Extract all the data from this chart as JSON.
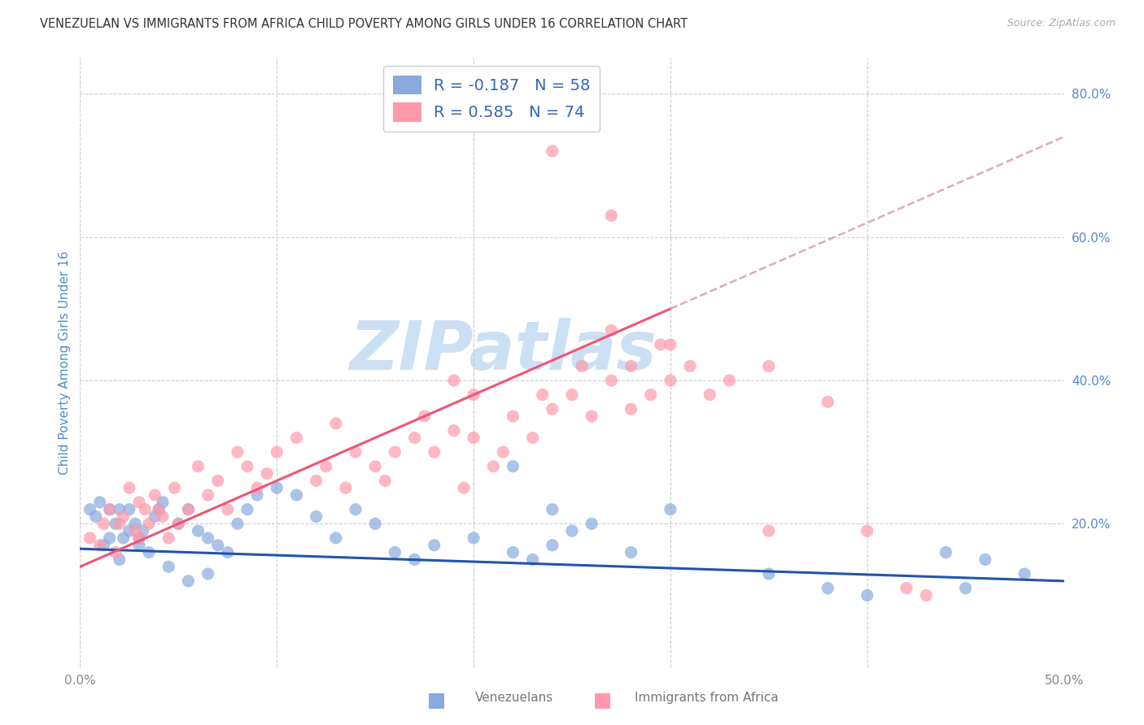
{
  "title": "VENEZUELAN VS IMMIGRANTS FROM AFRICA CHILD POVERTY AMONG GIRLS UNDER 16 CORRELATION CHART",
  "source": "Source: ZipAtlas.com",
  "ylabel": "Child Poverty Among Girls Under 16",
  "xlim": [
    0.0,
    0.5
  ],
  "ylim": [
    0.0,
    0.85
  ],
  "xtick_positions": [
    0.0,
    0.1,
    0.2,
    0.3,
    0.4,
    0.5
  ],
  "xtick_labels": [
    "0.0%",
    "",
    "",
    "",
    "",
    "50.0%"
  ],
  "ytick_labels_right": [
    "20.0%",
    "40.0%",
    "60.0%",
    "80.0%"
  ],
  "ytick_positions_right": [
    0.2,
    0.4,
    0.6,
    0.8
  ],
  "venezuelan_R": -0.187,
  "venezuelan_N": 58,
  "africa_R": 0.585,
  "africa_N": 74,
  "color_venezuelan": "#88AADD",
  "color_africa": "#FF99AA",
  "color_line_venezuelan": "#2255AA",
  "color_line_africa": "#EE5577",
  "color_line_africa_dash": "#DDAABB",
  "watermark_text": "ZIPatlas",
  "watermark_color": "#AACCEE",
  "africa_line_solid_end": 0.3,
  "africa_line_dash_start": 0.3,
  "venezuelan_x": [
    0.005,
    0.008,
    0.01,
    0.012,
    0.015,
    0.015,
    0.018,
    0.02,
    0.02,
    0.022,
    0.025,
    0.025,
    0.028,
    0.03,
    0.03,
    0.032,
    0.035,
    0.038,
    0.04,
    0.042,
    0.045,
    0.05,
    0.055,
    0.055,
    0.06,
    0.065,
    0.065,
    0.07,
    0.075,
    0.08,
    0.085,
    0.09,
    0.1,
    0.11,
    0.12,
    0.13,
    0.14,
    0.15,
    0.16,
    0.17,
    0.18,
    0.2,
    0.22,
    0.22,
    0.23,
    0.24,
    0.24,
    0.25,
    0.26,
    0.28,
    0.3,
    0.35,
    0.38,
    0.4,
    0.44,
    0.45,
    0.46,
    0.48
  ],
  "venezuelan_y": [
    0.22,
    0.21,
    0.23,
    0.17,
    0.22,
    0.18,
    0.2,
    0.22,
    0.15,
    0.18,
    0.22,
    0.19,
    0.2,
    0.18,
    0.17,
    0.19,
    0.16,
    0.21,
    0.22,
    0.23,
    0.14,
    0.2,
    0.22,
    0.12,
    0.19,
    0.18,
    0.13,
    0.17,
    0.16,
    0.2,
    0.22,
    0.24,
    0.25,
    0.24,
    0.21,
    0.18,
    0.22,
    0.2,
    0.16,
    0.15,
    0.17,
    0.18,
    0.28,
    0.16,
    0.15,
    0.22,
    0.17,
    0.19,
    0.2,
    0.16,
    0.22,
    0.13,
    0.11,
    0.1,
    0.16,
    0.11,
    0.15,
    0.13
  ],
  "africa_x": [
    0.005,
    0.01,
    0.012,
    0.015,
    0.018,
    0.02,
    0.022,
    0.025,
    0.028,
    0.03,
    0.03,
    0.033,
    0.035,
    0.038,
    0.04,
    0.042,
    0.045,
    0.048,
    0.05,
    0.055,
    0.06,
    0.065,
    0.07,
    0.075,
    0.08,
    0.085,
    0.09,
    0.095,
    0.1,
    0.11,
    0.12,
    0.125,
    0.13,
    0.135,
    0.14,
    0.15,
    0.155,
    0.16,
    0.17,
    0.175,
    0.18,
    0.19,
    0.195,
    0.2,
    0.21,
    0.215,
    0.22,
    0.23,
    0.235,
    0.24,
    0.25,
    0.255,
    0.26,
    0.27,
    0.28,
    0.29,
    0.295,
    0.3,
    0.31,
    0.32,
    0.33,
    0.27,
    0.28,
    0.3,
    0.35,
    0.38,
    0.4,
    0.42,
    0.43,
    0.35,
    0.27,
    0.24,
    0.2,
    0.19
  ],
  "africa_y": [
    0.18,
    0.17,
    0.2,
    0.22,
    0.16,
    0.2,
    0.21,
    0.25,
    0.19,
    0.23,
    0.18,
    0.22,
    0.2,
    0.24,
    0.22,
    0.21,
    0.18,
    0.25,
    0.2,
    0.22,
    0.28,
    0.24,
    0.26,
    0.22,
    0.3,
    0.28,
    0.25,
    0.27,
    0.3,
    0.32,
    0.26,
    0.28,
    0.34,
    0.25,
    0.3,
    0.28,
    0.26,
    0.3,
    0.32,
    0.35,
    0.3,
    0.33,
    0.25,
    0.32,
    0.28,
    0.3,
    0.35,
    0.32,
    0.38,
    0.36,
    0.38,
    0.42,
    0.35,
    0.4,
    0.36,
    0.38,
    0.45,
    0.4,
    0.42,
    0.38,
    0.4,
    0.47,
    0.42,
    0.45,
    0.42,
    0.37,
    0.19,
    0.11,
    0.1,
    0.19,
    0.63,
    0.72,
    0.38,
    0.4
  ]
}
